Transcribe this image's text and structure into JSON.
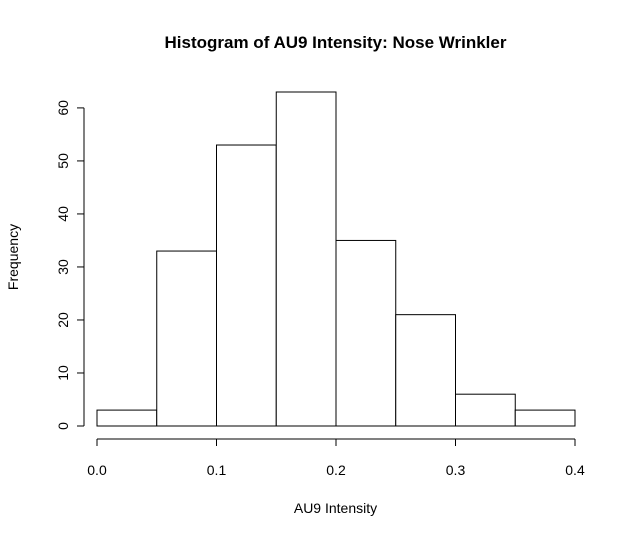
{
  "chart_data": {
    "type": "bar",
    "title": "Histogram of AU9 Intensity: Nose Wrinkler",
    "xlabel": "AU9 Intensity",
    "ylabel": "Frequency",
    "bins": [
      {
        "from": 0.0,
        "to": 0.05,
        "count": 3
      },
      {
        "from": 0.05,
        "to": 0.1,
        "count": 33
      },
      {
        "from": 0.1,
        "to": 0.15,
        "count": 53
      },
      {
        "from": 0.15,
        "to": 0.2,
        "count": 63
      },
      {
        "from": 0.2,
        "to": 0.25,
        "count": 35
      },
      {
        "from": 0.25,
        "to": 0.3,
        "count": 21
      },
      {
        "from": 0.3,
        "to": 0.35,
        "count": 6
      },
      {
        "from": 0.35,
        "to": 0.4,
        "count": 3
      }
    ],
    "xlim": [
      0,
      0.4
    ],
    "ylim": [
      0,
      63
    ],
    "x_ticks": [
      "0.0",
      "0.1",
      "0.2",
      "0.3",
      "0.4"
    ],
    "y_ticks": [
      "0",
      "10",
      "20",
      "30",
      "40",
      "50",
      "60"
    ],
    "grid": false,
    "bar_fill": "#ffffff",
    "bar_stroke": "#000000"
  }
}
